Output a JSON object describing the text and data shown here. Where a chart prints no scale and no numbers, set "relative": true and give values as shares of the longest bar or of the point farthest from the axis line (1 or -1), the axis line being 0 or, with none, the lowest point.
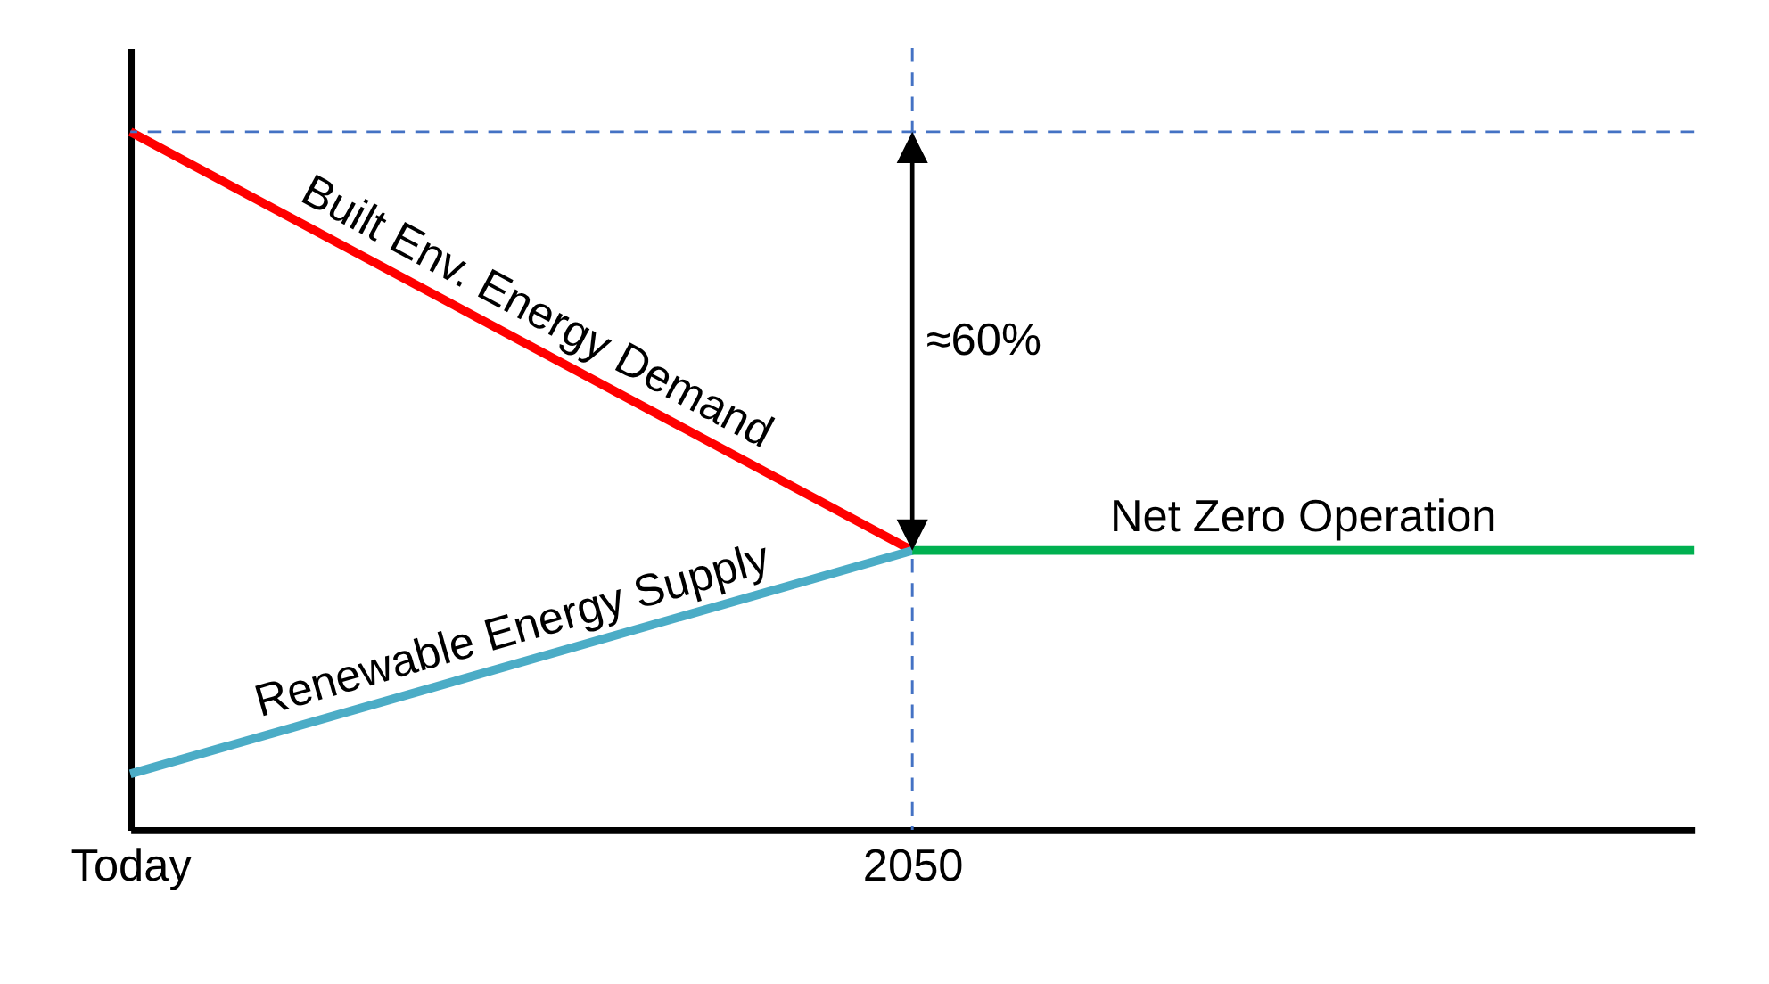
{
  "chart_data": {
    "type": "line",
    "relative": true,
    "categories": [
      "Today",
      "2050",
      null
    ],
    "series": [
      {
        "name": "Built Env. Energy Demand",
        "color": "#ff0000",
        "values": [
          1,
          0.4,
          null
        ]
      },
      {
        "name": "Renewable Energy Supply",
        "color": "#4bacc6",
        "values": [
          0.08,
          0.4,
          null
        ]
      },
      {
        "name": "Net Zero Operation",
        "color": "#00b050",
        "values": [
          null,
          0.4,
          0.4
        ]
      }
    ],
    "tick_labels": "x",
    "ref_lines": [
      {
        "axis": "y",
        "value": 1,
        "color": "#4472c4",
        "line_style": "dashed"
      },
      {
        "axis": "x",
        "value": "2050",
        "color": "#4472c4",
        "line_style": "dashed"
      }
    ],
    "annotations": [
      {
        "text": "≈60%",
        "x": "2050",
        "y": 0.7
      }
    ],
    "grid": false,
    "legend": false,
    "marker": "none",
    "line_style": "solid"
  }
}
